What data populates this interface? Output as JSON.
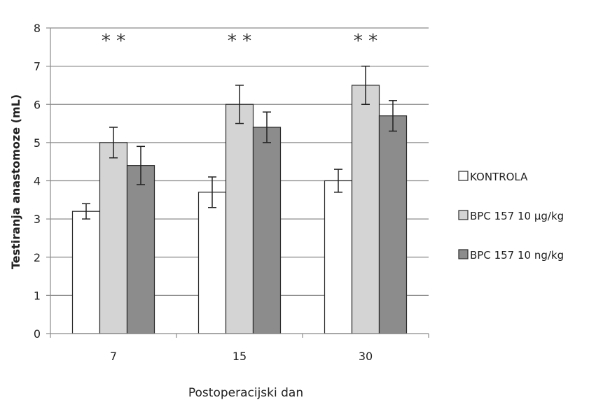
{
  "chart_data": {
    "type": "bar",
    "xlabel": "Postoperacijski dan",
    "ylabel": "Testiranja anastomoze (mL)",
    "categories": [
      "7",
      "15",
      "30"
    ],
    "ylim": [
      0,
      8
    ],
    "yticks": [
      0,
      1,
      2,
      3,
      4,
      5,
      6,
      7,
      8
    ],
    "grid": true,
    "legend_position": "right",
    "series": [
      {
        "name": "KONTROLA",
        "values": [
          3.2,
          3.7,
          4.0
        ],
        "errors": [
          0.2,
          0.4,
          0.3
        ],
        "color": "#ffffff"
      },
      {
        "name": "BPC 157 10 μg/kg",
        "values": [
          5.0,
          6.0,
          6.5
        ],
        "errors": [
          0.4,
          0.5,
          0.5
        ],
        "color": "#d4d4d4"
      },
      {
        "name": "BPC 157 10 ng/kg",
        "values": [
          4.4,
          5.4,
          5.7
        ],
        "errors": [
          0.5,
          0.4,
          0.4
        ],
        "color": "#8c8c8c"
      }
    ],
    "annotations": [
      {
        "category": "7",
        "text": "* *"
      },
      {
        "category": "15",
        "text": "* *"
      },
      {
        "category": "30",
        "text": "* *"
      }
    ]
  }
}
